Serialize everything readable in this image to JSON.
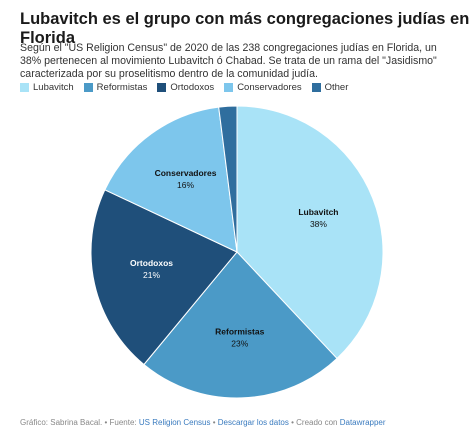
{
  "chart_data": {
    "type": "pie",
    "title": "Lubavitch es el grupo con más congregaciones judías en Florida",
    "subtitle": "Según el \"US Religion Census\" de 2020 de las 238 congregaciones judías en Florida, un 38% pertenecen al movimiento Lubavitch ó Chabad. Se trata de un rama del \"Jasidismo\" caracterizada por su proselitismo dentro de la comunidad judía.",
    "categories": [
      "Lubavitch",
      "Reformistas",
      "Ortodoxos",
      "Conservadores",
      "Other"
    ],
    "values": [
      38,
      23,
      21,
      16,
      2
    ],
    "value_labels": [
      "38%",
      "23%",
      "21%",
      "16%",
      null
    ],
    "colors": [
      "#a9e3f7",
      "#4b9ac7",
      "#1f4f7a",
      "#7dc6ec",
      "#2f6e9e"
    ],
    "footer": [
      "Gráfico: Sabrina Bacal.",
      "Fuente:",
      "US Religion Census",
      "Descargar los datos",
      "Creado con",
      "Datawrapper"
    ]
  }
}
